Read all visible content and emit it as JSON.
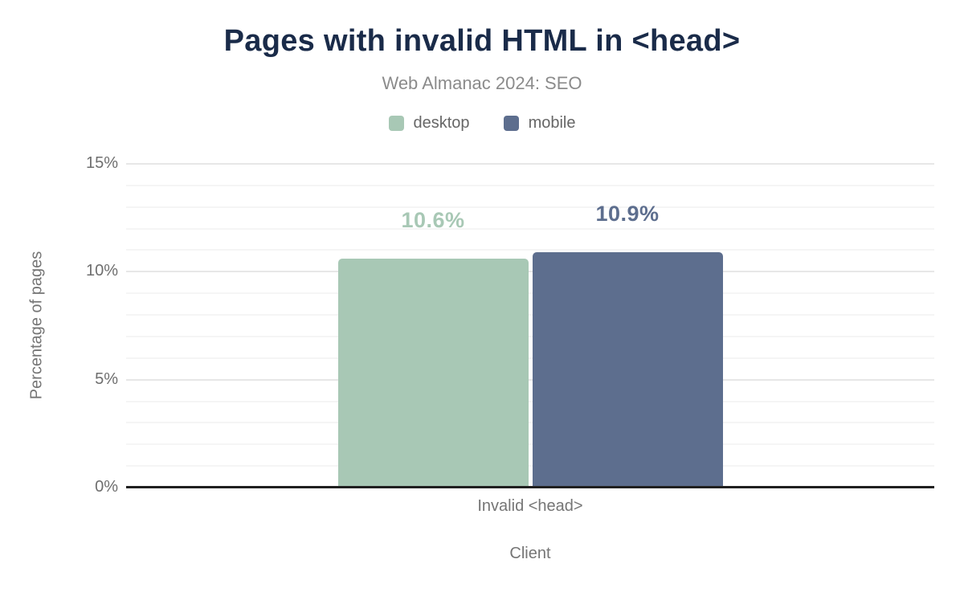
{
  "chart_data": {
    "type": "bar",
    "title": "Pages with invalid HTML in <head>",
    "subtitle": "Web Almanac 2024: SEO",
    "categories": [
      "Invalid <head>"
    ],
    "series": [
      {
        "name": "desktop",
        "values": [
          10.6
        ],
        "value_label": "10.6%",
        "color": "#a8c8b5"
      },
      {
        "name": "mobile",
        "values": [
          10.9
        ],
        "value_label": "10.9%",
        "color": "#5d6e8e"
      }
    ],
    "xlabel": "Client",
    "ylabel": "Percentage of pages",
    "ylim": [
      0,
      15
    ],
    "ytick_values": [
      0,
      5,
      10,
      15
    ],
    "ytick_labels": [
      "0%",
      "5%",
      "10%",
      "15%"
    ],
    "ytick_step_minor": 1,
    "ytick_step_major": 5,
    "grid": true,
    "legend_position": "top",
    "colors": {
      "title": "#1a2b49",
      "subtitle": "#8b8b8b",
      "axis_text": "#757575",
      "tick_text": "#6e6e6e",
      "gridline_minor": "#f5f5f5",
      "gridline_major": "#e7e7e7",
      "axis_line": "#202020",
      "background": "#ffffff"
    }
  }
}
